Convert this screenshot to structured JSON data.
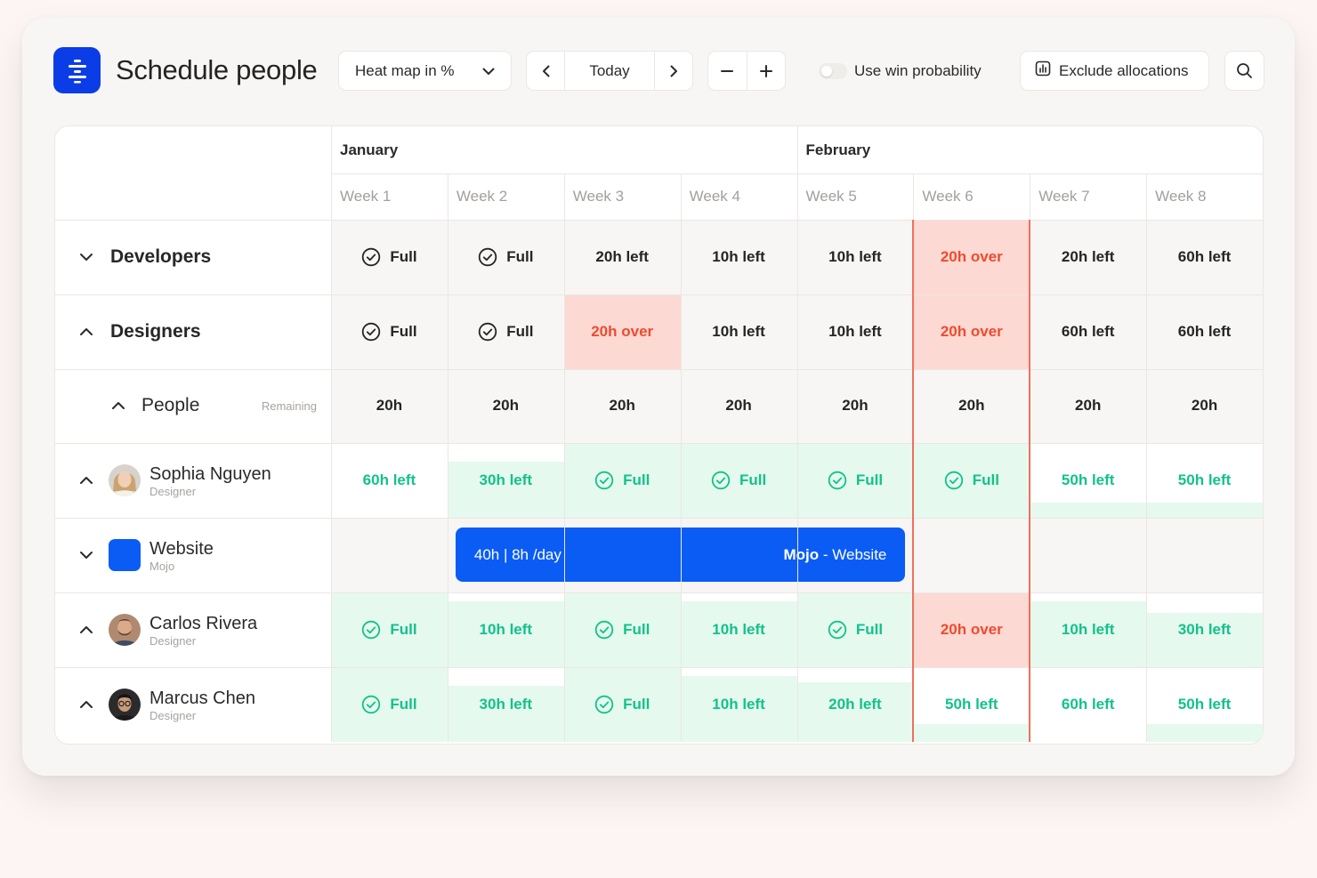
{
  "header": {
    "title": "Schedule people",
    "view_select": "Heat map in %",
    "today_label": "Today",
    "toggle_label": "Use win probability",
    "exclude_label": "Exclude allocations"
  },
  "colors": {
    "brand": "#0a3de6",
    "bar": "#0a5cf5",
    "green_text": "#12c28a",
    "green_fill": "#e5f9ef",
    "red_text": "#f04a2f",
    "red_fill": "#fdd9d3",
    "gray_fill": "#f7f6f5"
  },
  "months": [
    {
      "label": "January"
    },
    {
      "label": "February"
    }
  ],
  "weeks": [
    "Week 1",
    "Week 2",
    "Week 3",
    "Week 4",
    "Week 5",
    "Week 6",
    "Week 7",
    "Week 8"
  ],
  "rows": [
    {
      "type": "group",
      "name": "Developers",
      "chevron": "chevron-down",
      "cells": [
        {
          "text": "Full",
          "check": true,
          "tone": "neutral"
        },
        {
          "text": "Full",
          "check": true,
          "tone": "neutral"
        },
        {
          "text": "20h left",
          "tone": "neutral"
        },
        {
          "text": "10h left",
          "tone": "neutral"
        },
        {
          "text": "10h left",
          "tone": "neutral"
        },
        {
          "text": "20h over",
          "tone": "red"
        },
        {
          "text": "20h left",
          "tone": "neutral"
        },
        {
          "text": "60h left",
          "tone": "neutral"
        }
      ]
    },
    {
      "type": "group",
      "name": "Designers",
      "chevron": "chevron-up",
      "cells": [
        {
          "text": "Full",
          "check": true,
          "tone": "neutral"
        },
        {
          "text": "Full",
          "check": true,
          "tone": "neutral"
        },
        {
          "text": "20h over",
          "tone": "red"
        },
        {
          "text": "10h left",
          "tone": "neutral"
        },
        {
          "text": "10h left",
          "tone": "neutral"
        },
        {
          "text": "20h over",
          "tone": "red"
        },
        {
          "text": "60h left",
          "tone": "neutral"
        },
        {
          "text": "60h left",
          "tone": "neutral"
        }
      ]
    },
    {
      "type": "people",
      "name": "People",
      "sub": "Remaining",
      "chevron": "chevron-up",
      "cells": [
        {
          "text": "20h",
          "tone": "neutral"
        },
        {
          "text": "20h",
          "tone": "neutral"
        },
        {
          "text": "20h",
          "tone": "neutral"
        },
        {
          "text": "20h",
          "tone": "neutral"
        },
        {
          "text": "20h",
          "tone": "neutral"
        },
        {
          "text": "20h",
          "tone": "neutral"
        },
        {
          "text": "20h",
          "tone": "neutral"
        },
        {
          "text": "20h",
          "tone": "neutral"
        }
      ]
    },
    {
      "type": "person",
      "name": "Sophia Nguyen",
      "sub": "Designer",
      "chevron": "chevron-up",
      "avatar": "woman-blonde",
      "cells": [
        {
          "text": "60h left",
          "tone": "green",
          "fill": 0
        },
        {
          "text": "30h left",
          "tone": "green",
          "fill": 0.75
        },
        {
          "text": "Full",
          "check": true,
          "tone": "green",
          "fill": 1
        },
        {
          "text": "Full",
          "check": true,
          "tone": "green",
          "fill": 1
        },
        {
          "text": "Full",
          "check": true,
          "tone": "green",
          "fill": 1
        },
        {
          "text": "Full",
          "check": true,
          "tone": "green",
          "fill": 1
        },
        {
          "text": "50h left",
          "tone": "green",
          "fill": 0.2
        },
        {
          "text": "50h left",
          "tone": "green",
          "fill": 0.2
        }
      ]
    },
    {
      "type": "project",
      "name": "Website",
      "sub": "Mojo",
      "chevron": "chevron-down",
      "bar": {
        "hours": "40h | 8h /day",
        "client": "Mojo",
        "project": " - Website"
      },
      "cells": []
    },
    {
      "type": "person",
      "name": "Carlos Rivera",
      "sub": "Designer",
      "chevron": "chevron-up",
      "avatar": "man-beard",
      "cells": [
        {
          "text": "Full",
          "check": true,
          "tone": "green",
          "fill": 1
        },
        {
          "text": "10h left",
          "tone": "green",
          "fill": 0.88
        },
        {
          "text": "Full",
          "check": true,
          "tone": "green",
          "fill": 1
        },
        {
          "text": "10h left",
          "tone": "green",
          "fill": 0.88
        },
        {
          "text": "Full",
          "check": true,
          "tone": "green",
          "fill": 1
        },
        {
          "text": "20h over",
          "tone": "red"
        },
        {
          "text": "10h left",
          "tone": "green",
          "fill": 0.88
        },
        {
          "text": "30h left",
          "tone": "green",
          "fill": 0.72
        }
      ]
    },
    {
      "type": "person",
      "name": "Marcus Chen",
      "sub": "Designer",
      "chevron": "chevron-up",
      "avatar": "man-glasses",
      "cells": [
        {
          "text": "Full",
          "check": true,
          "tone": "green",
          "fill": 1
        },
        {
          "text": "30h left",
          "tone": "green",
          "fill": 0.75
        },
        {
          "text": "Full",
          "check": true,
          "tone": "green",
          "fill": 1
        },
        {
          "text": "10h left",
          "tone": "green",
          "fill": 0.88
        },
        {
          "text": "20h left",
          "tone": "green",
          "fill": 0.8
        },
        {
          "text": "50h left",
          "tone": "green",
          "fill": 0.23
        },
        {
          "text": "60h left",
          "tone": "green",
          "fill": 0
        },
        {
          "text": "50h left",
          "tone": "green",
          "fill": 0.23
        }
      ]
    }
  ]
}
